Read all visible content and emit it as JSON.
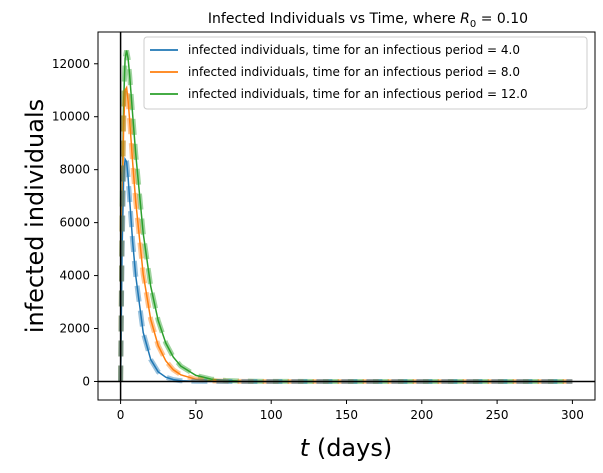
{
  "chart_data": {
    "type": "line",
    "title_prefix": "Infected Individuals vs Time, where ",
    "title_symbol": "R",
    "title_subscript": "0",
    "title_suffix": " = 0.10",
    "xlabel_italic": "t",
    "xlabel_rest": " (days)",
    "ylabel": "infected individuals",
    "xlim": [
      -15,
      315
    ],
    "ylim": [
      -700,
      13200
    ],
    "xticks": [
      0,
      50,
      100,
      150,
      200,
      250,
      300
    ],
    "yticks": [
      0,
      2000,
      4000,
      6000,
      8000,
      10000,
      12000
    ],
    "grid": false,
    "legend_position": "top-right",
    "reference_lines": {
      "x": 0,
      "y": 0
    },
    "x": [
      0,
      1,
      2,
      3,
      4,
      5,
      6,
      8,
      10,
      15,
      20,
      25,
      30,
      35,
      40,
      50,
      60,
      70,
      80,
      100,
      150,
      200,
      250,
      300
    ],
    "series": [
      {
        "name": "infected individuals, time for an infectious period = 4.0",
        "color": "#1f77b4",
        "values": [
          0,
          5000,
          7600,
          8400,
          8300,
          7700,
          6900,
          5300,
          4000,
          1850,
          830,
          360,
          160,
          70,
          30,
          6,
          1,
          0,
          0,
          0,
          0,
          0,
          0,
          0
        ]
      },
      {
        "name": "infected individuals, time for an infectious period = 8.0",
        "color": "#ff7f0e",
        "values": [
          0,
          6000,
          9600,
          11000,
          11100,
          10600,
          9900,
          8300,
          6800,
          4050,
          2350,
          1350,
          780,
          440,
          250,
          80,
          25,
          8,
          2,
          0,
          0,
          0,
          0,
          0
        ]
      },
      {
        "name": "infected individuals, time for an infectious period = 12.0",
        "color": "#2ca02c",
        "values": [
          0,
          6500,
          10500,
          12200,
          12500,
          12200,
          11600,
          10100,
          8600,
          5600,
          3600,
          2300,
          1450,
          920,
          580,
          230,
          90,
          35,
          14,
          2,
          0,
          0,
          0,
          0
        ]
      }
    ]
  }
}
